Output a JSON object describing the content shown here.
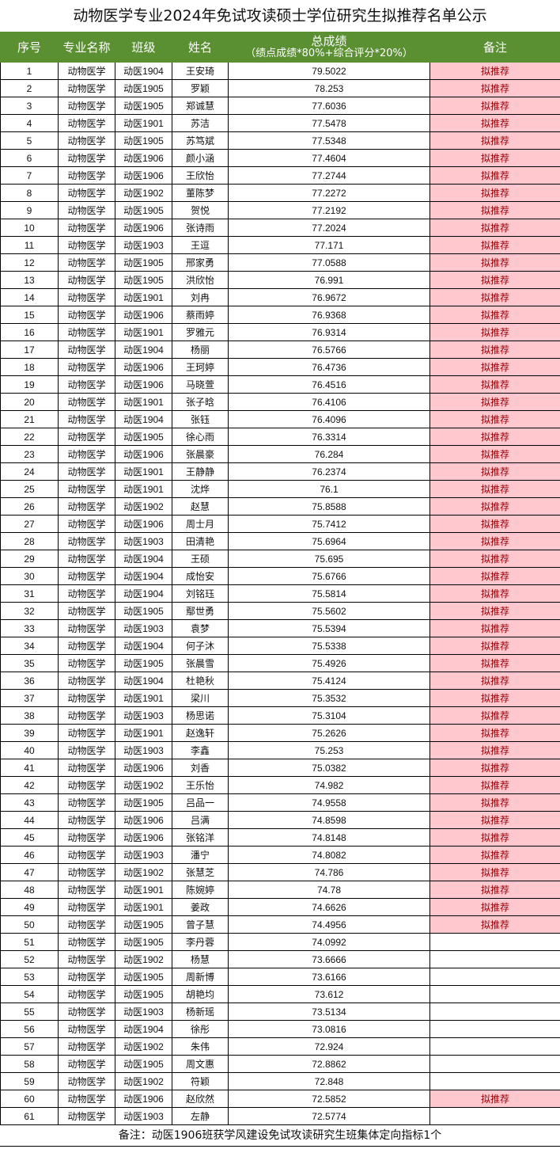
{
  "title": "动物医学专业2024年免试攻读硕士学位研究生拟推荐名单公示",
  "headers": {
    "seq": "序号",
    "major": "专业名称",
    "class": "班级",
    "name": "姓名",
    "score": "总成绩",
    "score_sub": "（绩点成绩*80%+综合评分*20%）",
    "remark": "备注"
  },
  "colors": {
    "header_bg": "#5a8f32",
    "remark_bg": "#ffc7ce",
    "remark_text": "#9c0006"
  },
  "rows": [
    [
      "1",
      "动物医学",
      "动医1904",
      "王安琦",
      "79.5022",
      "拟推荐"
    ],
    [
      "2",
      "动物医学",
      "动医1905",
      "罗颖",
      "78.253",
      "拟推荐"
    ],
    [
      "3",
      "动物医学",
      "动医1905",
      "郑诚慧",
      "77.6036",
      "拟推荐"
    ],
    [
      "4",
      "动物医学",
      "动医1901",
      "苏洁",
      "77.5478",
      "拟推荐"
    ],
    [
      "5",
      "动物医学",
      "动医1905",
      "苏笃斌",
      "77.5348",
      "拟推荐"
    ],
    [
      "6",
      "动物医学",
      "动医1906",
      "颜小涵",
      "77.4604",
      "拟推荐"
    ],
    [
      "7",
      "动物医学",
      "动医1906",
      "王欣怡",
      "77.2744",
      "拟推荐"
    ],
    [
      "8",
      "动物医学",
      "动医1902",
      "董陈梦",
      "77.2272",
      "拟推荐"
    ],
    [
      "9",
      "动物医学",
      "动医1905",
      "贺悦",
      "77.2192",
      "拟推荐"
    ],
    [
      "10",
      "动物医学",
      "动医1906",
      "张诗雨",
      "77.2024",
      "拟推荐"
    ],
    [
      "11",
      "动物医学",
      "动医1903",
      "王逗",
      "77.171",
      "拟推荐"
    ],
    [
      "12",
      "动物医学",
      "动医1905",
      "邢家勇",
      "77.0588",
      "拟推荐"
    ],
    [
      "13",
      "动物医学",
      "动医1905",
      "洪欣怡",
      "76.991",
      "拟推荐"
    ],
    [
      "14",
      "动物医学",
      "动医1901",
      "刘冉",
      "76.9672",
      "拟推荐"
    ],
    [
      "15",
      "动物医学",
      "动医1906",
      "蔡雨婷",
      "76.9368",
      "拟推荐"
    ],
    [
      "16",
      "动物医学",
      "动医1901",
      "罗雅元",
      "76.9314",
      "拟推荐"
    ],
    [
      "17",
      "动物医学",
      "动医1904",
      "杨丽",
      "76.5766",
      "拟推荐"
    ],
    [
      "18",
      "动物医学",
      "动医1906",
      "王珂婷",
      "76.4736",
      "拟推荐"
    ],
    [
      "19",
      "动物医学",
      "动医1906",
      "马晓萱",
      "76.4516",
      "拟推荐"
    ],
    [
      "20",
      "动物医学",
      "动医1901",
      "张子晗",
      "76.4106",
      "拟推荐"
    ],
    [
      "21",
      "动物医学",
      "动医1904",
      "张钰",
      "76.4096",
      "拟推荐"
    ],
    [
      "22",
      "动物医学",
      "动医1905",
      "徐心雨",
      "76.3314",
      "拟推荐"
    ],
    [
      "23",
      "动物医学",
      "动医1906",
      "张晨豪",
      "76.284",
      "拟推荐"
    ],
    [
      "24",
      "动物医学",
      "动医1901",
      "王静静",
      "76.2374",
      "拟推荐"
    ],
    [
      "25",
      "动物医学",
      "动医1901",
      "沈烨",
      "76.1",
      "拟推荐"
    ],
    [
      "26",
      "动物医学",
      "动医1902",
      "赵慧",
      "75.8588",
      "拟推荐"
    ],
    [
      "27",
      "动物医学",
      "动医1906",
      "周士月",
      "75.7412",
      "拟推荐"
    ],
    [
      "28",
      "动物医学",
      "动医1903",
      "田清艳",
      "75.6964",
      "拟推荐"
    ],
    [
      "29",
      "动物医学",
      "动医1904",
      "王硕",
      "75.695",
      "拟推荐"
    ],
    [
      "30",
      "动物医学",
      "动医1904",
      "成怡安",
      "75.6766",
      "拟推荐"
    ],
    [
      "31",
      "动物医学",
      "动医1904",
      "刘铭珏",
      "75.5814",
      "拟推荐"
    ],
    [
      "32",
      "动物医学",
      "动医1905",
      "鄢世勇",
      "75.5602",
      "拟推荐"
    ],
    [
      "33",
      "动物医学",
      "动医1903",
      "袁梦",
      "75.5394",
      "拟推荐"
    ],
    [
      "34",
      "动物医学",
      "动医1904",
      "何子沐",
      "75.5338",
      "拟推荐"
    ],
    [
      "35",
      "动物医学",
      "动医1905",
      "张晨雪",
      "75.4926",
      "拟推荐"
    ],
    [
      "36",
      "动物医学",
      "动医1904",
      "杜艳秋",
      "75.4124",
      "拟推荐"
    ],
    [
      "37",
      "动物医学",
      "动医1901",
      "梁川",
      "75.3532",
      "拟推荐"
    ],
    [
      "38",
      "动物医学",
      "动医1903",
      "杨思诺",
      "75.3104",
      "拟推荐"
    ],
    [
      "39",
      "动物医学",
      "动医1901",
      "赵逸轩",
      "75.2626",
      "拟推荐"
    ],
    [
      "40",
      "动物医学",
      "动医1903",
      "李鑫",
      "75.253",
      "拟推荐"
    ],
    [
      "41",
      "动物医学",
      "动医1906",
      "刘香",
      "75.0382",
      "拟推荐"
    ],
    [
      "42",
      "动物医学",
      "动医1902",
      "王乐怡",
      "74.982",
      "拟推荐"
    ],
    [
      "43",
      "动物医学",
      "动医1905",
      "吕品一",
      "74.9558",
      "拟推荐"
    ],
    [
      "44",
      "动物医学",
      "动医1906",
      "吕满",
      "74.8598",
      "拟推荐"
    ],
    [
      "45",
      "动物医学",
      "动医1906",
      "张铭洋",
      "74.8148",
      "拟推荐"
    ],
    [
      "46",
      "动物医学",
      "动医1903",
      "潘宁",
      "74.8082",
      "拟推荐"
    ],
    [
      "47",
      "动物医学",
      "动医1902",
      "张慧芝",
      "74.786",
      "拟推荐"
    ],
    [
      "48",
      "动物医学",
      "动医1901",
      "陈婉婷",
      "74.78",
      "拟推荐"
    ],
    [
      "49",
      "动物医学",
      "动医1901",
      "姜政",
      "74.6626",
      "拟推荐"
    ],
    [
      "50",
      "动物医学",
      "动医1905",
      "曾子慧",
      "74.4956",
      "拟推荐"
    ],
    [
      "51",
      "动物医学",
      "动医1905",
      "李丹蓉",
      "74.0992",
      ""
    ],
    [
      "52",
      "动物医学",
      "动医1902",
      "杨慧",
      "73.6666",
      ""
    ],
    [
      "53",
      "动物医学",
      "动医1905",
      "周新博",
      "73.6166",
      ""
    ],
    [
      "54",
      "动物医学",
      "动医1905",
      "胡艳均",
      "73.612",
      ""
    ],
    [
      "55",
      "动物医学",
      "动医1903",
      "杨新瑶",
      "73.5134",
      ""
    ],
    [
      "56",
      "动物医学",
      "动医1904",
      "徐彤",
      "73.0816",
      ""
    ],
    [
      "57",
      "动物医学",
      "动医1902",
      "朱伟",
      "72.924",
      ""
    ],
    [
      "58",
      "动物医学",
      "动医1905",
      "周文惠",
      "72.8862",
      ""
    ],
    [
      "59",
      "动物医学",
      "动医1902",
      "符颖",
      "72.848",
      ""
    ],
    [
      "60",
      "动物医学",
      "动医1906",
      "赵欣然",
      "72.5852",
      "拟推荐"
    ],
    [
      "61",
      "动物医学",
      "动医1903",
      "左静",
      "72.5774",
      ""
    ]
  ],
  "footer": "备注：动医1906班获学风建设免试攻读研究生班集体定向指标1个"
}
